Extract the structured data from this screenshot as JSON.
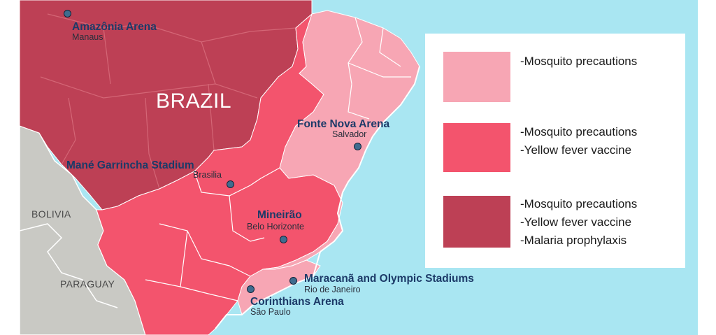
{
  "map": {
    "country_label": "BRAZIL",
    "neighbors": [
      {
        "id": "bolivia",
        "label": "BOLIVIA"
      },
      {
        "id": "paraguay",
        "label": "PARAGUAY"
      }
    ],
    "colors": {
      "ocean": "#a9e6f2",
      "neighbor": "#c9c9c4",
      "mosquito_only": "#f7a6b4",
      "mosquito_yellow_fever": "#f3546d",
      "mosquito_yellow_fever_malaria": "#bd4055",
      "stadium_dot": "#3f6c8f",
      "stadium_name": "#1c3a68"
    },
    "stadiums": [
      {
        "id": "amazonia",
        "name": "Amazônia Arena",
        "city": "Manaus"
      },
      {
        "id": "fonte-nova",
        "name": "Fonte Nova Arena",
        "city": "Salvador"
      },
      {
        "id": "mane-garrincha",
        "name": "Mané Garrincha Stadium",
        "city": "Brasilia"
      },
      {
        "id": "mineirao",
        "name": "Mineirão",
        "city": "Belo Horizonte"
      },
      {
        "id": "maracana",
        "name": "Maracanã and Olympic Stadiums",
        "city": "Rio de Janeiro"
      },
      {
        "id": "corinthians",
        "name": "Corinthians Arena",
        "city": "São Paulo"
      }
    ]
  },
  "legend": {
    "items": [
      {
        "color": "#f7a6b4",
        "lines": [
          "-Mosquito precautions"
        ]
      },
      {
        "color": "#f3546d",
        "lines": [
          "-Mosquito precautions",
          "-Yellow fever vaccine"
        ]
      },
      {
        "color": "#bd4055",
        "lines": [
          "-Mosquito precautions",
          "-Yellow fever vaccine",
          "-Malaria prophylaxis"
        ]
      }
    ]
  }
}
